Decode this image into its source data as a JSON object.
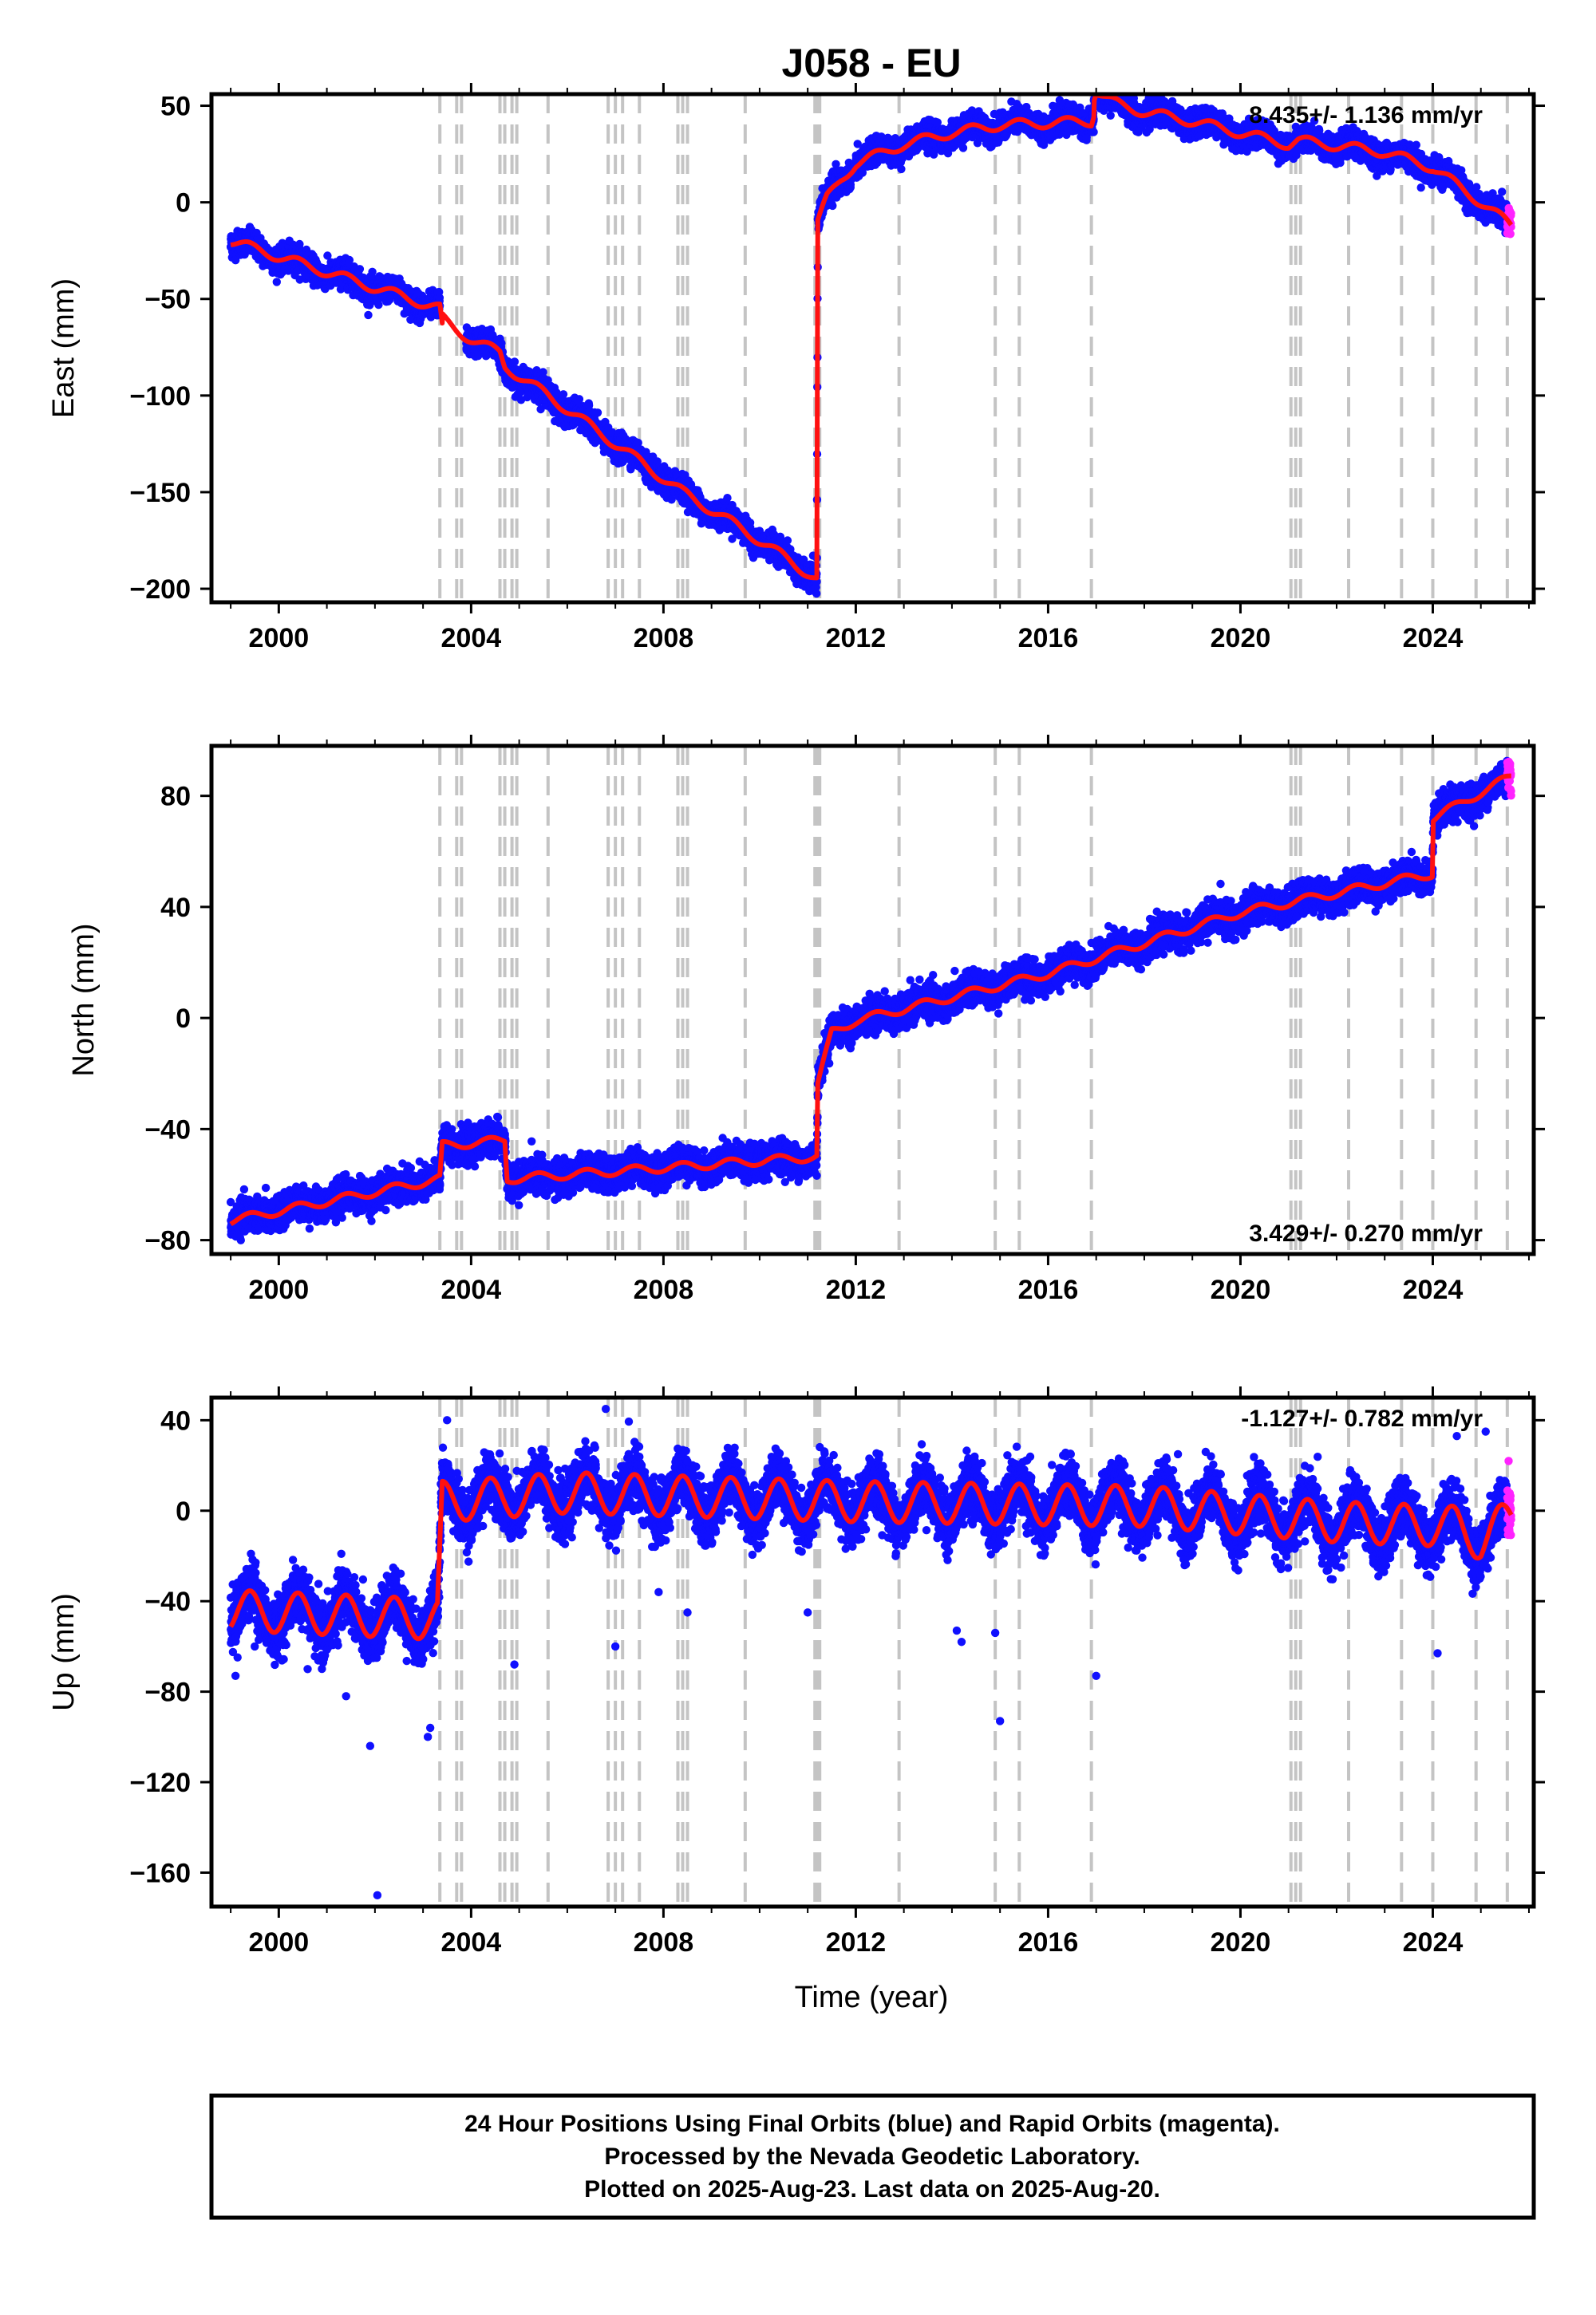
{
  "figure": {
    "title": "J058 - EU",
    "xlabel": "Time (year)",
    "footer": [
      "24 Hour Positions Using Final Orbits (blue) and Rapid Orbits (magenta).",
      "Processed by the Nevada Geodetic Laboratory.",
      "Plotted on 2025-Aug-23. Last data on 2025-Aug-20."
    ]
  },
  "colors": {
    "final_points": "#1010ff",
    "rapid_points": "#ff22ff",
    "model_line": "#ff1010",
    "event_lines": "#c4c4c4"
  },
  "event_years": [
    2003.35,
    2003.7,
    2003.8,
    2004.6,
    2004.7,
    2004.85,
    2004.95,
    2005.6,
    2006.85,
    2007.0,
    2007.15,
    2007.5,
    2008.3,
    2008.4,
    2008.5,
    2009.7,
    2011.15,
    2011.2,
    2011.25,
    2012.9,
    2014.9,
    2015.4,
    2016.9,
    2021.05,
    2021.15,
    2021.25,
    2022.25,
    2023.35,
    2024.0,
    2024.9,
    2025.55
  ],
  "chart_data": [
    {
      "type": "scatter",
      "component": "east",
      "ylabel": "East (mm)",
      "xlim": [
        1998.6,
        2026.1
      ],
      "ylim": [
        -207,
        56
      ],
      "x_ticks": [
        2000,
        2004,
        2008,
        2012,
        2016,
        2020,
        2024
      ],
      "y_ticks": [
        -200,
        -150,
        -100,
        -50,
        0,
        50
      ],
      "rate_label": "8.435+/- 1.136 mm/yr",
      "rate_position": "top-right",
      "data_span": [
        1999.0,
        2025.63
      ],
      "rapid_orbits_span": [
        2025.55,
        2025.63
      ],
      "trend_knots": {
        "x": [
          1999.0,
          2003.35,
          2003.4,
          2004.6,
          2004.7,
          2005.6,
          2007.0,
          2008.4,
          2009.7,
          2011.19,
          2011.21,
          2011.4,
          2011.7,
          2012.0,
          2013.0,
          2014.0,
          2015.0,
          2016.9,
          2017.0,
          2019.0,
          2021.0,
          2021.2,
          2023.0,
          2024.0,
          2025.0,
          2025.63
        ],
        "y": [
          -20,
          -55,
          -65,
          -78,
          -85,
          -100,
          -125,
          -150,
          -170,
          -195,
          -10,
          2,
          12,
          20,
          30,
          36,
          40,
          42,
          51,
          42,
          30,
          32,
          26,
          18,
          0,
          -12
        ]
      },
      "model_offsets": [
        [
          2003.4,
          5
        ],
        [
          2016.95,
          8
        ]
      ],
      "annual_amplitude": 2.5,
      "scatter_sd": 3.2
    },
    {
      "type": "scatter",
      "component": "north",
      "ylabel": "North (mm)",
      "xlim": [
        1998.6,
        2026.1
      ],
      "ylim": [
        -85,
        98
      ],
      "x_ticks": [
        2000,
        2004,
        2008,
        2012,
        2016,
        2020,
        2024
      ],
      "y_ticks": [
        -80,
        -40,
        0,
        40,
        80
      ],
      "rate_label": "3.429+/- 0.270 mm/yr",
      "rate_position": "bottom-right",
      "data_span": [
        1999.0,
        2025.63
      ],
      "rapid_orbits_span": [
        2025.55,
        2025.63
      ],
      "trend_knots": {
        "x": [
          1999.0,
          2003.35,
          2003.4,
          2004.7,
          2004.75,
          2011.19,
          2011.21,
          2011.5,
          2012.0,
          2016.0,
          2020.0,
          2023.99,
          2024.01,
          2025.63
        ],
        "y": [
          -73,
          -58,
          -46,
          -44,
          -58,
          -50,
          -24,
          -5,
          -1,
          16,
          38,
          52,
          72,
          87
        ]
      },
      "model_offsets": [],
      "annual_amplitude": 1.5,
      "scatter_sd": 2.8
    },
    {
      "type": "scatter",
      "component": "up",
      "ylabel": "Up (mm)",
      "xlim": [
        1998.6,
        2026.1
      ],
      "ylim": [
        -175,
        50
      ],
      "x_ticks": [
        2000,
        2004,
        2008,
        2012,
        2016,
        2020,
        2024
      ],
      "y_ticks": [
        -160,
        -120,
        -80,
        -40,
        0,
        40
      ],
      "rate_label": "-1.127+/- 0.782 mm/yr",
      "rate_position": "top-right",
      "data_span": [
        1999.0,
        2025.63
      ],
      "rapid_orbits_span": [
        2025.55,
        2025.63
      ],
      "trend_knots": {
        "x": [
          1999.0,
          2003.3,
          2003.4,
          2006.0,
          2012.0,
          2018.0,
          2022.0,
          2024.5,
          2025.0,
          2025.63
        ],
        "y": [
          -44,
          -48,
          4,
          8,
          4,
          2,
          -5,
          -7,
          -13,
          -3
        ]
      },
      "model_offsets": [],
      "annual_amplitude": 9,
      "scatter_sd": 6,
      "outliers": [
        [
          2002.05,
          -170
        ],
        [
          2001.9,
          -104
        ],
        [
          2001.4,
          -82
        ],
        [
          2003.1,
          -100
        ],
        [
          2003.15,
          -96
        ],
        [
          2003.5,
          40
        ],
        [
          2004.9,
          -68
        ],
        [
          2006.8,
          45
        ],
        [
          2007.0,
          -60
        ],
        [
          2007.9,
          -36
        ],
        [
          2008.5,
          -45
        ],
        [
          2011.0,
          -45
        ],
        [
          2014.1,
          -53
        ],
        [
          2014.2,
          -58
        ],
        [
          2014.9,
          -54
        ],
        [
          2015.0,
          -93
        ],
        [
          2017.0,
          -73
        ],
        [
          2018.7,
          25
        ],
        [
          2024.1,
          -63
        ],
        [
          2024.5,
          33
        ],
        [
          2025.1,
          35
        ],
        [
          1999.1,
          -73
        ],
        [
          1999.5,
          -60
        ],
        [
          2000.6,
          -70
        ]
      ]
    }
  ]
}
